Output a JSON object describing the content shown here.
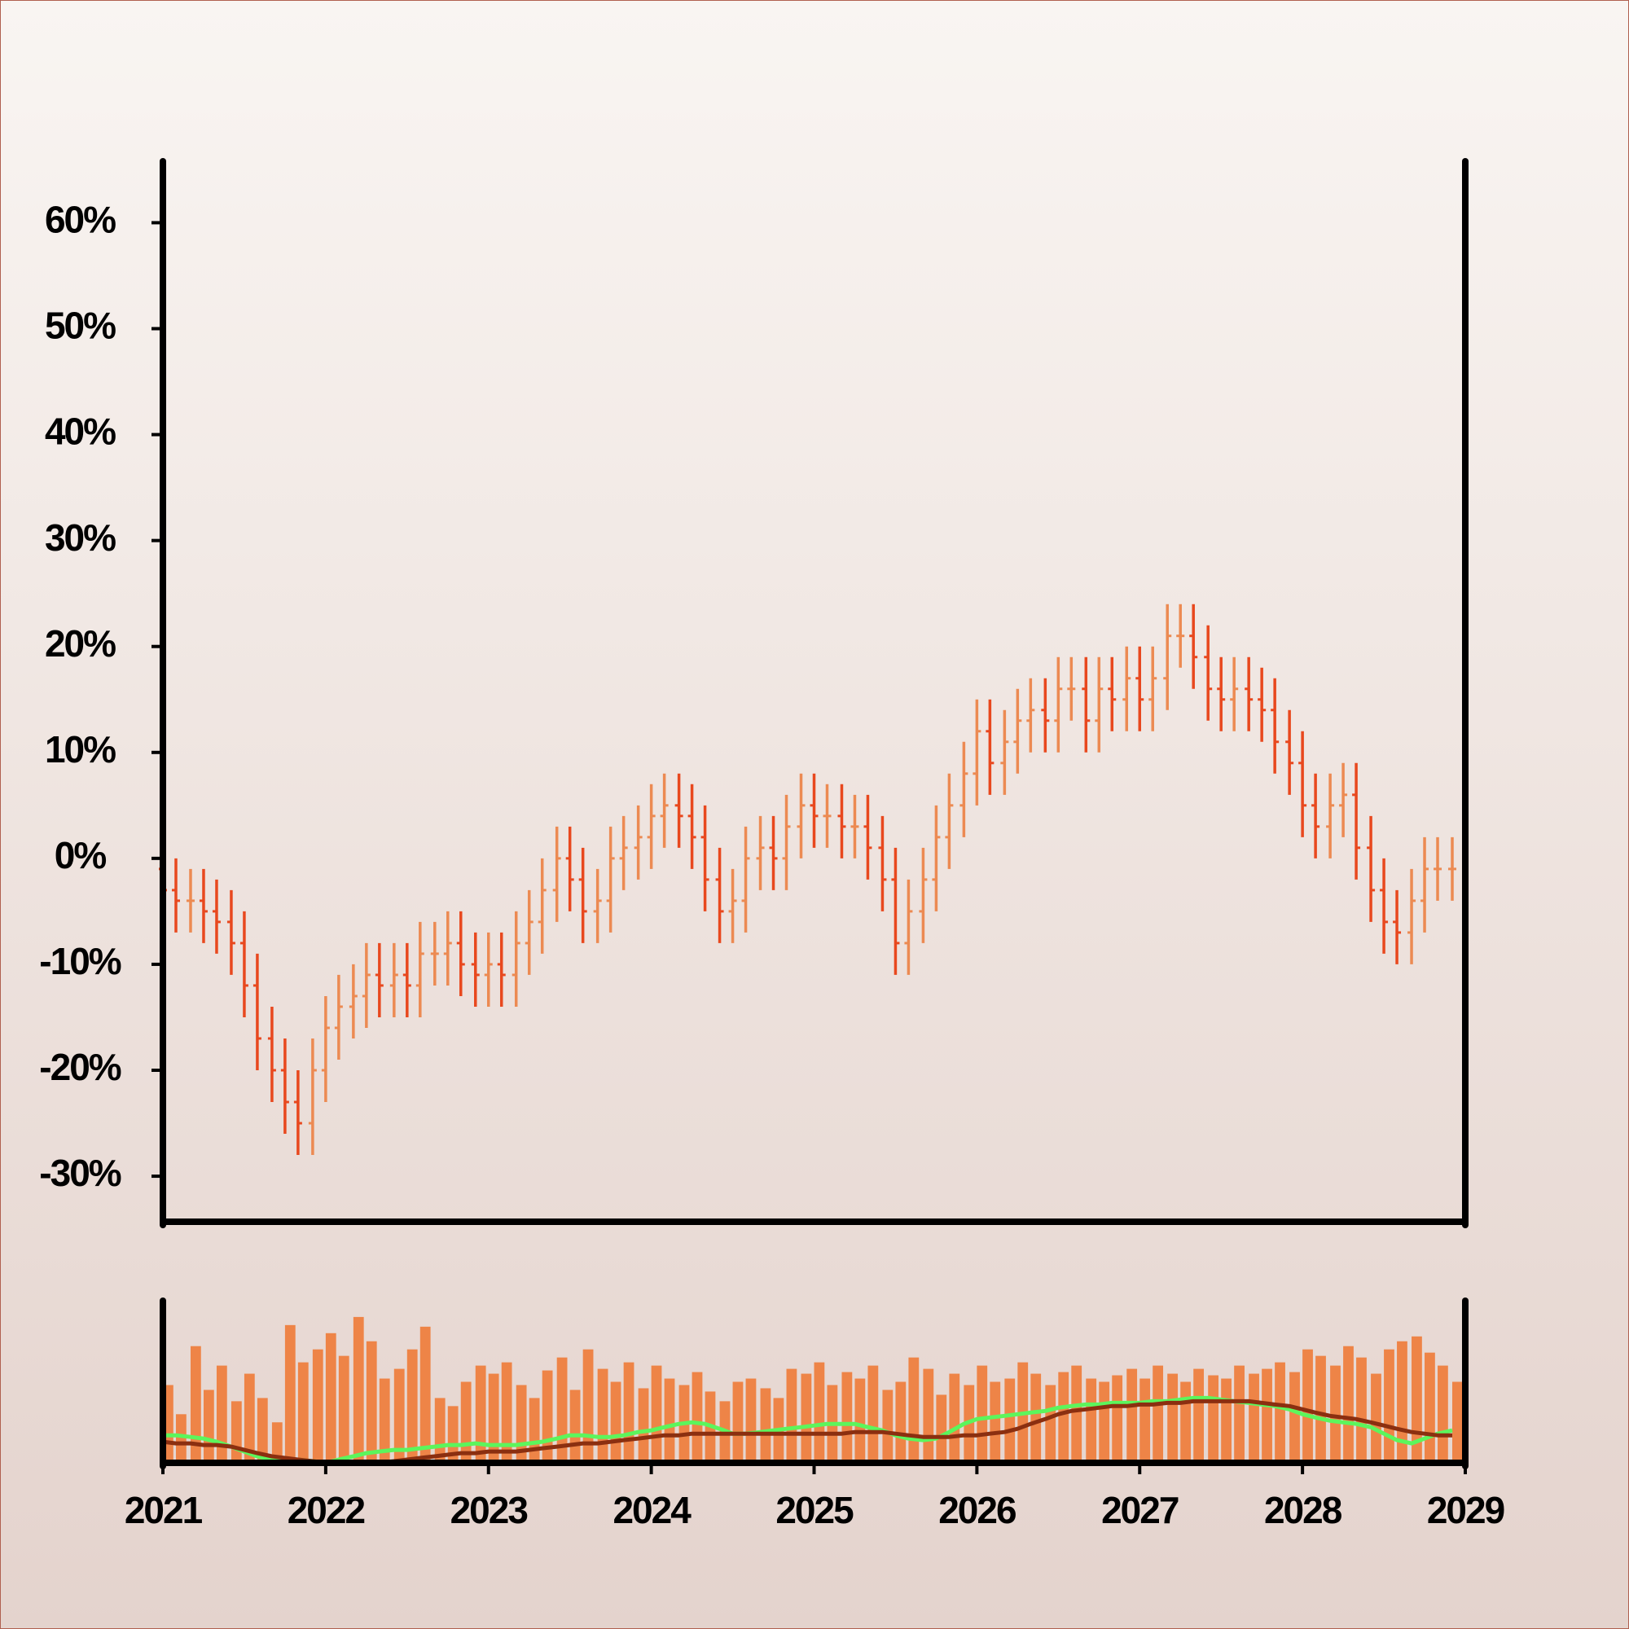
{
  "chart_data": [
    {
      "type": "ohlc",
      "x": [
        2021,
        2021.08,
        2021.17,
        2021.25,
        2021.33,
        2021.42,
        2021.5,
        2021.58,
        2021.67,
        2021.75,
        2021.83,
        2021.92,
        2022,
        2022.08,
        2022.17,
        2022.25,
        2022.33,
        2022.42,
        2022.5,
        2022.58,
        2022.67,
        2022.75,
        2022.83,
        2022.92,
        2023,
        2023.08,
        2023.17,
        2023.25,
        2023.33,
        2023.42,
        2023.5,
        2023.58,
        2023.67,
        2023.75,
        2023.83,
        2023.92,
        2024,
        2024.08,
        2024.17,
        2024.25,
        2024.33,
        2024.42,
        2024.5,
        2024.58,
        2024.67,
        2024.75,
        2024.83,
        2024.92,
        2025,
        2025.08,
        2025.17,
        2025.25,
        2025.33,
        2025.42,
        2025.5,
        2025.58,
        2025.67,
        2025.75,
        2025.83,
        2025.92,
        2026,
        2026.08,
        2026.17,
        2026.25,
        2026.33,
        2026.42,
        2026.5,
        2026.58,
        2026.67,
        2026.75,
        2026.83,
        2026.92,
        2027,
        2027.08,
        2027.17,
        2027.25,
        2027.33,
        2027.42,
        2027.5,
        2027.58,
        2027.67,
        2027.75,
        2027.83,
        2027.92,
        2028,
        2028.08,
        2028.17,
        2028.25,
        2028.33,
        2028.42,
        2028.5,
        2028.58,
        2028.67,
        2028.75,
        2028.83,
        2028.92
      ],
      "open": [
        -1,
        -3,
        -4,
        -4,
        -5,
        -6,
        -8,
        -12,
        -17,
        -20,
        -23,
        -25,
        -20,
        -16,
        -14,
        -13,
        -11,
        -12,
        -11,
        -12,
        -9,
        -9,
        -8,
        -10,
        -11,
        -10,
        -11,
        -8,
        -6,
        -3,
        0,
        -2,
        -5,
        -4,
        0,
        1,
        2,
        4,
        5,
        4,
        2,
        -2,
        -5,
        -4,
        0,
        1,
        0,
        3,
        5,
        4,
        4,
        3,
        3,
        1,
        -2,
        -8,
        -5,
        -2,
        2,
        5,
        8,
        12,
        9,
        11,
        13,
        14,
        13,
        16,
        16,
        13,
        16,
        15,
        17,
        15,
        17,
        21,
        21,
        19,
        16,
        15,
        16,
        15,
        14,
        11,
        9,
        5,
        3,
        5,
        6,
        1,
        -3,
        -6,
        -7,
        -4,
        -1,
        -1
      ],
      "high": [
        2,
        0,
        -1,
        -1,
        -2,
        -3,
        -5,
        -9,
        -14,
        -17,
        -20,
        -17,
        -13,
        -11,
        -10,
        -8,
        -8,
        -8,
        -8,
        -6,
        -6,
        -5,
        -5,
        -7,
        -7,
        -7,
        -5,
        -3,
        0,
        3,
        3,
        1,
        -1,
        3,
        4,
        5,
        7,
        8,
        8,
        7,
        5,
        1,
        -1,
        3,
        4,
        4,
        6,
        8,
        8,
        7,
        7,
        6,
        6,
        4,
        1,
        -2,
        1,
        5,
        8,
        11,
        15,
        15,
        14,
        16,
        17,
        17,
        19,
        19,
        19,
        19,
        19,
        20,
        20,
        20,
        24,
        24,
        24,
        22,
        19,
        19,
        19,
        18,
        17,
        14,
        12,
        8,
        8,
        9,
        9,
        4,
        0,
        -3,
        -1,
        2,
        2,
        2
      ],
      "low": [
        -6,
        -7,
        -7,
        -8,
        -9,
        -11,
        -15,
        -20,
        -23,
        -26,
        -28,
        -28,
        -23,
        -19,
        -17,
        -16,
        -15,
        -15,
        -15,
        -15,
        -12,
        -12,
        -13,
        -14,
        -14,
        -14,
        -14,
        -11,
        -9,
        -6,
        -5,
        -8,
        -8,
        -7,
        -3,
        -2,
        -1,
        1,
        1,
        -1,
        -5,
        -8,
        -8,
        -7,
        -3,
        -3,
        -3,
        0,
        1,
        1,
        0,
        0,
        -2,
        -5,
        -11,
        -11,
        -8,
        -5,
        -1,
        2,
        5,
        6,
        6,
        8,
        10,
        10,
        10,
        13,
        10,
        10,
        12,
        12,
        12,
        12,
        14,
        18,
        16,
        13,
        12,
        12,
        12,
        11,
        8,
        6,
        2,
        0,
        0,
        2,
        -2,
        -6,
        -9,
        -10,
        -10,
        -7,
        -4,
        -4
      ],
      "close": [
        -3,
        -4,
        -4,
        -5,
        -6,
        -8,
        -12,
        -17,
        -20,
        -23,
        -25,
        -20,
        -16,
        -14,
        -13,
        -11,
        -12,
        -11,
        -12,
        -9,
        -9,
        -8,
        -10,
        -11,
        -10,
        -11,
        -8,
        -6,
        -3,
        0,
        -2,
        -5,
        -4,
        0,
        1,
        2,
        4,
        5,
        4,
        2,
        -2,
        -5,
        -4,
        0,
        1,
        0,
        3,
        5,
        4,
        4,
        3,
        3,
        1,
        -2,
        -8,
        -5,
        -2,
        2,
        5,
        8,
        12,
        9,
        11,
        13,
        14,
        13,
        16,
        16,
        13,
        16,
        15,
        17,
        15,
        17,
        21,
        21,
        19,
        16,
        15,
        16,
        15,
        14,
        11,
        9,
        5,
        3,
        5,
        6,
        1,
        -3,
        -6,
        -7,
        -4,
        -1,
        -1,
        -1
      ],
      "up_color": "#ec8a52",
      "down_color": "#e8481e",
      "xlim": [
        2021,
        2029
      ],
      "ylim": [
        -34.3,
        65.8
      ],
      "yticks": [
        {
          "value": -30,
          "label": "-30%"
        },
        {
          "value": -20,
          "label": "-20%"
        },
        {
          "value": -10,
          "label": "-10%"
        },
        {
          "value": 0,
          "label": "0%"
        },
        {
          "value": 10,
          "label": "10%"
        },
        {
          "value": 20,
          "label": "20%"
        },
        {
          "value": 30,
          "label": "30%"
        },
        {
          "value": 40,
          "label": "40%"
        },
        {
          "value": 50,
          "label": "50%"
        },
        {
          "value": 60,
          "label": "60%"
        }
      ]
    },
    {
      "type": "volume",
      "x": [
        2021,
        2021.08,
        2021.17,
        2021.25,
        2021.33,
        2021.42,
        2021.5,
        2021.58,
        2021.67,
        2021.75,
        2021.83,
        2021.92,
        2022,
        2022.08,
        2022.17,
        2022.25,
        2022.33,
        2022.42,
        2022.5,
        2022.58,
        2022.67,
        2022.75,
        2022.83,
        2022.92,
        2023,
        2023.08,
        2023.17,
        2023.25,
        2023.33,
        2023.42,
        2023.5,
        2023.58,
        2023.67,
        2023.75,
        2023.83,
        2023.92,
        2024,
        2024.08,
        2024.17,
        2024.25,
        2024.33,
        2024.42,
        2024.5,
        2024.58,
        2024.67,
        2024.75,
        2024.83,
        2024.92,
        2025,
        2025.08,
        2025.17,
        2025.25,
        2025.33,
        2025.42,
        2025.5,
        2025.58,
        2025.67,
        2025.75,
        2025.83,
        2025.92,
        2026,
        2026.08,
        2026.17,
        2026.25,
        2026.33,
        2026.42,
        2026.5,
        2026.58,
        2026.67,
        2026.75,
        2026.83,
        2026.92,
        2027,
        2027.08,
        2027.17,
        2027.25,
        2027.33,
        2027.42,
        2027.5,
        2027.58,
        2027.67,
        2027.75,
        2027.83,
        2027.92,
        2028,
        2028.08,
        2028.17,
        2028.25,
        2028.33,
        2028.42,
        2028.5,
        2028.58,
        2028.67,
        2028.75,
        2028.83,
        2028.92
      ],
      "values": [
        48,
        30,
        72,
        45,
        60,
        38,
        55,
        40,
        25,
        85,
        62,
        70,
        80,
        66,
        90,
        75,
        52,
        58,
        70,
        84,
        40,
        35,
        50,
        60,
        55,
        62,
        48,
        40,
        57,
        65,
        45,
        70,
        58,
        50,
        62,
        46,
        60,
        52,
        48,
        56,
        44,
        38,
        50,
        52,
        46,
        40,
        58,
        55,
        62,
        48,
        56,
        52,
        60,
        45,
        50,
        65,
        58,
        42,
        55,
        48,
        60,
        50,
        52,
        62,
        55,
        48,
        56,
        60,
        52,
        50,
        54,
        58,
        52,
        60,
        55,
        50,
        58,
        54,
        52,
        60,
        55,
        58,
        62,
        56,
        70,
        66,
        60,
        72,
        65,
        55,
        70,
        75,
        78,
        68,
        60,
        50
      ],
      "color": "#ee8447",
      "series": [
        {
          "color": "#5cf55c",
          "values": [
            17,
            17,
            16,
            15,
            13,
            10,
            7,
            4,
            2,
            2,
            2,
            1,
            0,
            2,
            4,
            6,
            7,
            8,
            8,
            9,
            10,
            11,
            11,
            12,
            11,
            11,
            11,
            12,
            13,
            15,
            17,
            17,
            16,
            16,
            17,
            19,
            20,
            22,
            24,
            25,
            24,
            21,
            18,
            18,
            19,
            20,
            21,
            22,
            23,
            24,
            24,
            24,
            22,
            20,
            17,
            15,
            14,
            15,
            19,
            24,
            27,
            28,
            29,
            30,
            31,
            32,
            34,
            35,
            36,
            36,
            37,
            37,
            37,
            38,
            38,
            39,
            40,
            40,
            39,
            38,
            37,
            36,
            35,
            33,
            30,
            28,
            26,
            25,
            24,
            22,
            18,
            14,
            12,
            15,
            18,
            20
          ]
        },
        {
          "color": "#8b2f10",
          "values": [
            13,
            12,
            12,
            11,
            11,
            10,
            8,
            6,
            4,
            3,
            2,
            1,
            0,
            0,
            0,
            0,
            0,
            1,
            2,
            3,
            4,
            5,
            6,
            6,
            7,
            7,
            7,
            8,
            9,
            10,
            11,
            12,
            12,
            13,
            14,
            15,
            16,
            17,
            17,
            18,
            18,
            18,
            18,
            18,
            18,
            18,
            18,
            18,
            18,
            18,
            18,
            19,
            19,
            19,
            18,
            17,
            16,
            16,
            16,
            17,
            17,
            18,
            19,
            21,
            24,
            27,
            30,
            32,
            33,
            34,
            35,
            35,
            36,
            36,
            37,
            37,
            38,
            38,
            38,
            38,
            38,
            37,
            36,
            35,
            33,
            31,
            29,
            28,
            27,
            25,
            23,
            21,
            19,
            18,
            17,
            17
          ]
        }
      ],
      "xlim": [
        2021,
        2029
      ],
      "ylim": [
        0,
        100
      ],
      "xticks": [
        2021,
        2022,
        2023,
        2024,
        2025,
        2026,
        2027,
        2028,
        2029
      ]
    }
  ]
}
